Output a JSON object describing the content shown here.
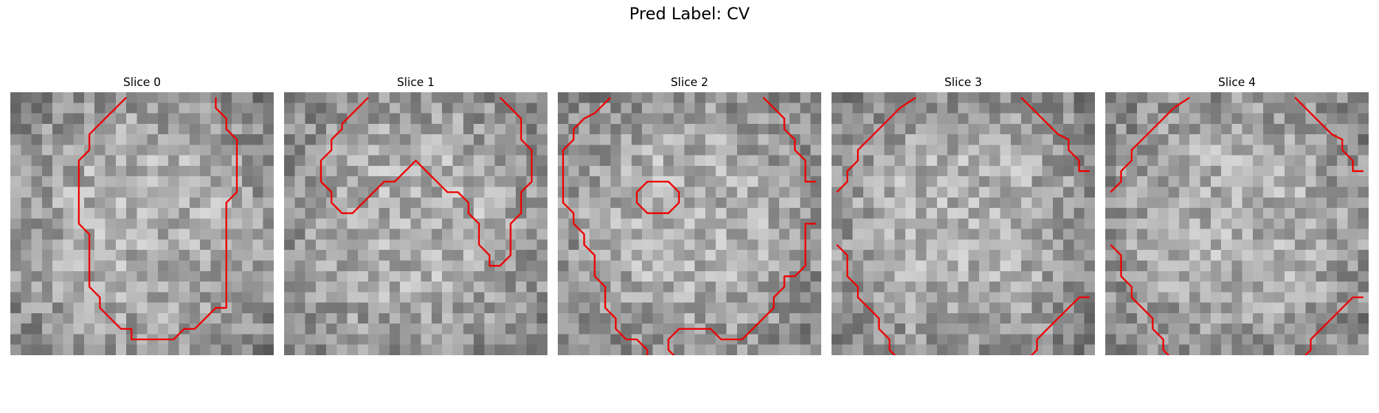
{
  "figure": {
    "title": "Pred Label: CV"
  },
  "panels": [
    {
      "title": "Slice 0",
      "seed": 11,
      "contours": [
        [
          [
            10.5,
            0
          ],
          [
            7,
            3.5
          ],
          [
            7,
            5
          ],
          [
            6,
            6
          ],
          [
            6,
            12
          ],
          [
            7,
            13
          ],
          [
            7,
            18
          ],
          [
            8,
            19
          ],
          [
            8,
            20
          ],
          [
            9,
            21
          ],
          [
            10,
            22
          ],
          [
            11,
            22
          ],
          [
            11,
            23
          ],
          [
            15,
            23
          ],
          [
            16,
            22
          ],
          [
            17,
            22
          ],
          [
            18,
            21
          ],
          [
            19,
            20
          ],
          [
            20,
            20
          ],
          [
            20,
            10
          ],
          [
            21,
            9
          ],
          [
            21,
            4
          ],
          [
            20,
            3
          ],
          [
            20,
            2
          ],
          [
            19,
            1
          ],
          [
            19,
            0
          ]
        ]
      ]
    },
    {
      "title": "Slice 1",
      "seed": 23,
      "contours": [
        [
          [
            7.5,
            0
          ],
          [
            5,
            2.5
          ],
          [
            5,
            3
          ],
          [
            4,
            4
          ],
          [
            4,
            5
          ],
          [
            3,
            6
          ],
          [
            3,
            8
          ],
          [
            4,
            9
          ],
          [
            4,
            10
          ],
          [
            5,
            11
          ],
          [
            6,
            11
          ],
          [
            7,
            10
          ],
          [
            8,
            9
          ],
          [
            9,
            8
          ],
          [
            10,
            8
          ],
          [
            11,
            7
          ],
          [
            12,
            6
          ],
          [
            13,
            7
          ],
          [
            14,
            8
          ],
          [
            15,
            9
          ],
          [
            16,
            9
          ],
          [
            17,
            10
          ],
          [
            17,
            11
          ],
          [
            18,
            12
          ],
          [
            18,
            14
          ],
          [
            19,
            15
          ],
          [
            19,
            16
          ],
          [
            20,
            16
          ],
          [
            21,
            15
          ],
          [
            21,
            12
          ],
          [
            22,
            11
          ],
          [
            22,
            9
          ],
          [
            23,
            8
          ],
          [
            23,
            5
          ],
          [
            22,
            4
          ],
          [
            22,
            2
          ],
          [
            21,
            1
          ],
          [
            20,
            0
          ]
        ]
      ]
    },
    {
      "title": "Slice 2",
      "seed": 37,
      "contours": [
        [
          [
            4.5,
            0
          ],
          [
            3,
            1.5
          ],
          [
            2,
            2
          ],
          [
            1,
            3
          ],
          [
            1,
            4
          ],
          [
            0,
            5
          ],
          [
            0,
            10
          ],
          [
            1,
            11
          ],
          [
            1,
            12
          ],
          [
            2,
            13
          ],
          [
            2,
            14
          ],
          [
            3,
            15
          ],
          [
            3,
            17
          ],
          [
            4,
            18
          ],
          [
            4,
            20
          ],
          [
            5,
            21
          ],
          [
            5,
            22
          ],
          [
            6,
            23
          ],
          [
            7,
            23
          ],
          [
            8,
            24
          ],
          [
            8,
            25
          ]
        ],
        [
          [
            19,
            0
          ],
          [
            20,
            1
          ],
          [
            21,
            2
          ],
          [
            21,
            3
          ],
          [
            22,
            4
          ],
          [
            22,
            5
          ],
          [
            23,
            6
          ],
          [
            23,
            8
          ],
          [
            24,
            8
          ]
        ],
        [
          [
            24,
            12
          ],
          [
            23,
            12
          ],
          [
            23,
            16
          ],
          [
            22,
            17
          ],
          [
            21,
            17
          ],
          [
            21,
            18
          ],
          [
            20,
            19
          ],
          [
            20,
            20
          ],
          [
            19,
            21
          ],
          [
            18,
            22
          ],
          [
            17,
            23
          ],
          [
            15,
            23
          ],
          [
            14,
            22
          ],
          [
            11,
            22
          ],
          [
            10,
            23
          ],
          [
            10,
            24
          ],
          [
            11,
            25
          ]
        ],
        [
          [
            9,
            8
          ],
          [
            10,
            8
          ],
          [
            11,
            9
          ],
          [
            11,
            10
          ],
          [
            10,
            11
          ],
          [
            8,
            11
          ],
          [
            7,
            10
          ],
          [
            7,
            9
          ],
          [
            8,
            8
          ],
          [
            9,
            8
          ]
        ]
      ]
    },
    {
      "title": "Slice 3",
      "seed": 53,
      "contours": [
        [
          [
            7.5,
            0
          ],
          [
            6,
            1
          ],
          [
            5,
            2
          ],
          [
            4,
            3
          ],
          [
            3,
            4
          ],
          [
            2,
            5
          ],
          [
            2,
            6
          ],
          [
            1,
            7
          ],
          [
            1,
            8
          ],
          [
            0,
            9
          ]
        ],
        [
          [
            17.5,
            0
          ],
          [
            19,
            1.5
          ],
          [
            20,
            2.5
          ],
          [
            21,
            3.5
          ],
          [
            22,
            4
          ],
          [
            22,
            5
          ],
          [
            23,
            6
          ],
          [
            23,
            7
          ],
          [
            24,
            7
          ]
        ],
        [
          [
            0,
            14
          ],
          [
            1,
            15
          ],
          [
            1,
            17
          ],
          [
            2,
            18
          ],
          [
            2,
            19
          ],
          [
            3,
            20
          ],
          [
            4,
            21
          ],
          [
            4,
            22
          ],
          [
            5,
            23
          ],
          [
            5,
            24
          ],
          [
            6,
            25
          ]
        ],
        [
          [
            24,
            19
          ],
          [
            23,
            19
          ],
          [
            22,
            20
          ],
          [
            21,
            21
          ],
          [
            20,
            22
          ],
          [
            19,
            23
          ],
          [
            19,
            24
          ],
          [
            18,
            25
          ]
        ]
      ]
    },
    {
      "title": "Slice 4",
      "seed": 71,
      "contours": [
        [
          [
            7.5,
            0
          ],
          [
            6,
            1
          ],
          [
            5,
            2
          ],
          [
            4,
            3
          ],
          [
            3,
            4
          ],
          [
            2,
            5
          ],
          [
            2,
            6
          ],
          [
            1,
            7
          ],
          [
            1,
            8
          ],
          [
            0,
            9
          ]
        ],
        [
          [
            17.5,
            0
          ],
          [
            19,
            1.5
          ],
          [
            20,
            2.5
          ],
          [
            21,
            3.5
          ],
          [
            22,
            4
          ],
          [
            22,
            5
          ],
          [
            23,
            6
          ],
          [
            23,
            7
          ],
          [
            24,
            7
          ]
        ],
        [
          [
            0,
            14
          ],
          [
            1,
            15
          ],
          [
            1,
            17
          ],
          [
            2,
            18
          ],
          [
            2,
            19
          ],
          [
            3,
            20
          ],
          [
            4,
            21
          ],
          [
            4,
            22
          ],
          [
            5,
            23
          ],
          [
            5,
            24
          ],
          [
            6,
            25
          ]
        ],
        [
          [
            24,
            19
          ],
          [
            23,
            19
          ],
          [
            22,
            20
          ],
          [
            21,
            21
          ],
          [
            20,
            22
          ],
          [
            19,
            23
          ],
          [
            19,
            24
          ],
          [
            18,
            25
          ]
        ]
      ]
    }
  ],
  "colors": {
    "contour": "#ee0000"
  }
}
